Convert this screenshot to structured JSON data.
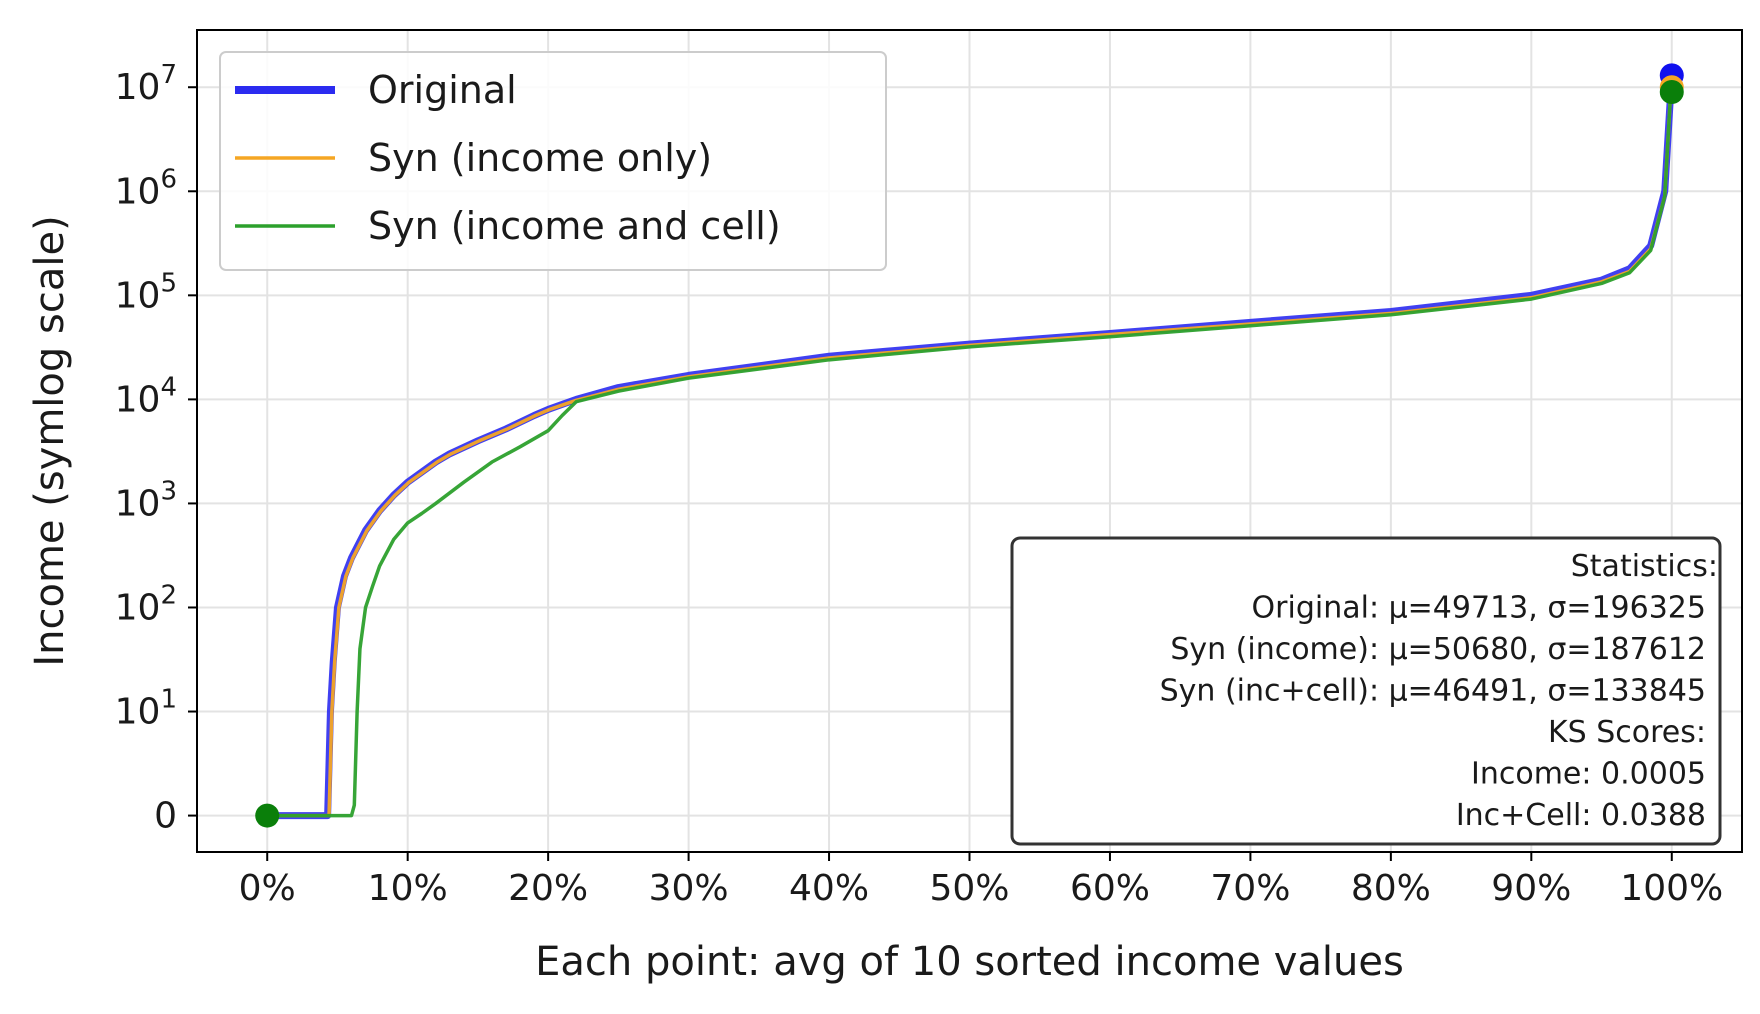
{
  "chart_data": {
    "type": "line",
    "xlabel": "Each point: avg of 10 sorted income values",
    "ylabel": "Income (symlog scale)",
    "xlim": [
      -5,
      105
    ],
    "x_ticks": [
      0,
      10,
      20,
      30,
      40,
      50,
      60,
      70,
      80,
      90,
      100
    ],
    "x_tick_labels": [
      "0%",
      "10%",
      "20%",
      "30%",
      "40%",
      "50%",
      "60%",
      "70%",
      "80%",
      "90%",
      "100%"
    ],
    "y_scale": "symlog",
    "y_ticks": [
      0,
      10,
      100,
      1000,
      10000,
      100000,
      1000000,
      10000000
    ],
    "y_tick_labels": [
      {
        "base": "0",
        "exp": ""
      },
      {
        "base": "10",
        "exp": "1"
      },
      {
        "base": "10",
        "exp": "2"
      },
      {
        "base": "10",
        "exp": "3"
      },
      {
        "base": "10",
        "exp": "4"
      },
      {
        "base": "10",
        "exp": "5"
      },
      {
        "base": "10",
        "exp": "6"
      },
      {
        "base": "10",
        "exp": "7"
      }
    ],
    "grid": true,
    "legend_position": "top-left",
    "series": [
      {
        "name": "Original",
        "color": "#2b2bf0",
        "style": "thick",
        "x": [
          0,
          4.3,
          4.5,
          4.7,
          5.0,
          5.5,
          6.0,
          7.0,
          8.0,
          9.0,
          10.0,
          12.0,
          13.0,
          15.0,
          17.0,
          19.0,
          20.0,
          22.0,
          25.0,
          30.0,
          40.0,
          50.0,
          60.0,
          70.0,
          80.0,
          90.0,
          95.0,
          97.0,
          98.5,
          99.5,
          99.9,
          100
        ],
        "y": [
          0,
          0,
          10,
          30,
          100,
          200,
          300,
          550,
          850,
          1200,
          1600,
          2500,
          3000,
          4000,
          5200,
          7000,
          8000,
          10000,
          13000,
          17000,
          26000,
          34000,
          43000,
          55000,
          70000,
          100000,
          140000,
          180000,
          300000,
          1000000,
          8000000,
          13000000
        ]
      },
      {
        "name": "Syn (income only)",
        "color": "#f5a623",
        "style": "thin",
        "x": [
          0,
          4.4,
          4.6,
          4.8,
          5.1,
          5.6,
          6.1,
          7.1,
          8.1,
          9.1,
          10.1,
          12.1,
          13.1,
          15.1,
          17.1,
          19.1,
          20.1,
          22.0,
          25.0,
          30.0,
          40.0,
          50.0,
          60.0,
          70.0,
          80.0,
          90.0,
          95.0,
          97.0,
          98.5,
          99.5,
          99.9,
          100
        ],
        "y": [
          0,
          0,
          10,
          30,
          100,
          200,
          300,
          550,
          850,
          1200,
          1600,
          2500,
          3000,
          4000,
          5200,
          7000,
          8000,
          9800,
          12500,
          16500,
          25000,
          33000,
          42000,
          53000,
          67000,
          95000,
          135000,
          170000,
          280000,
          900000,
          8000000,
          10000000
        ]
      },
      {
        "name": "Syn (income and cell)",
        "color": "#2ca02c",
        "style": "thin",
        "x": [
          0,
          6.0,
          6.2,
          6.4,
          6.6,
          7.0,
          7.5,
          8.0,
          9.0,
          10.0,
          11.0,
          12.0,
          14.0,
          16.0,
          18.0,
          20.0,
          21.0,
          22.0,
          25.0,
          30.0,
          40.0,
          50.0,
          60.0,
          70.0,
          80.0,
          90.0,
          95.0,
          97.0,
          98.5,
          99.5,
          99.9,
          100
        ],
        "y": [
          0,
          0,
          1,
          10,
          40,
          100,
          160,
          250,
          450,
          650,
          800,
          1000,
          1600,
          2500,
          3500,
          5000,
          7000,
          9500,
          12000,
          16000,
          24000,
          32000,
          40000,
          51000,
          65000,
          92000,
          130000,
          165000,
          270000,
          900000,
          8000000,
          9000000
        ]
      }
    ],
    "endpoints": [
      {
        "series": "Original",
        "x": 100,
        "y": 13000000,
        "color": "#1010ee"
      },
      {
        "series": "Syn (income only)",
        "x": 100,
        "y": 10000000,
        "color": "#f5a623"
      },
      {
        "series": "Syn (income and cell)",
        "x": 100,
        "y": 9000000,
        "color": "#0a7f0a"
      },
      {
        "series": "Syn (income and cell)",
        "x": 0,
        "y": 0,
        "color": "#0a7f0a"
      }
    ],
    "stats_box": {
      "position": "bottom-right",
      "lines": [
        "Statistics:",
        "Original: μ=49713, σ=196325",
        "Syn (income): μ=50680, σ=187612",
        "Syn (inc+cell): μ=46491, σ=133845",
        "KS Scores:",
        "Income: 0.0005",
        "Inc+Cell: 0.0388"
      ]
    }
  }
}
